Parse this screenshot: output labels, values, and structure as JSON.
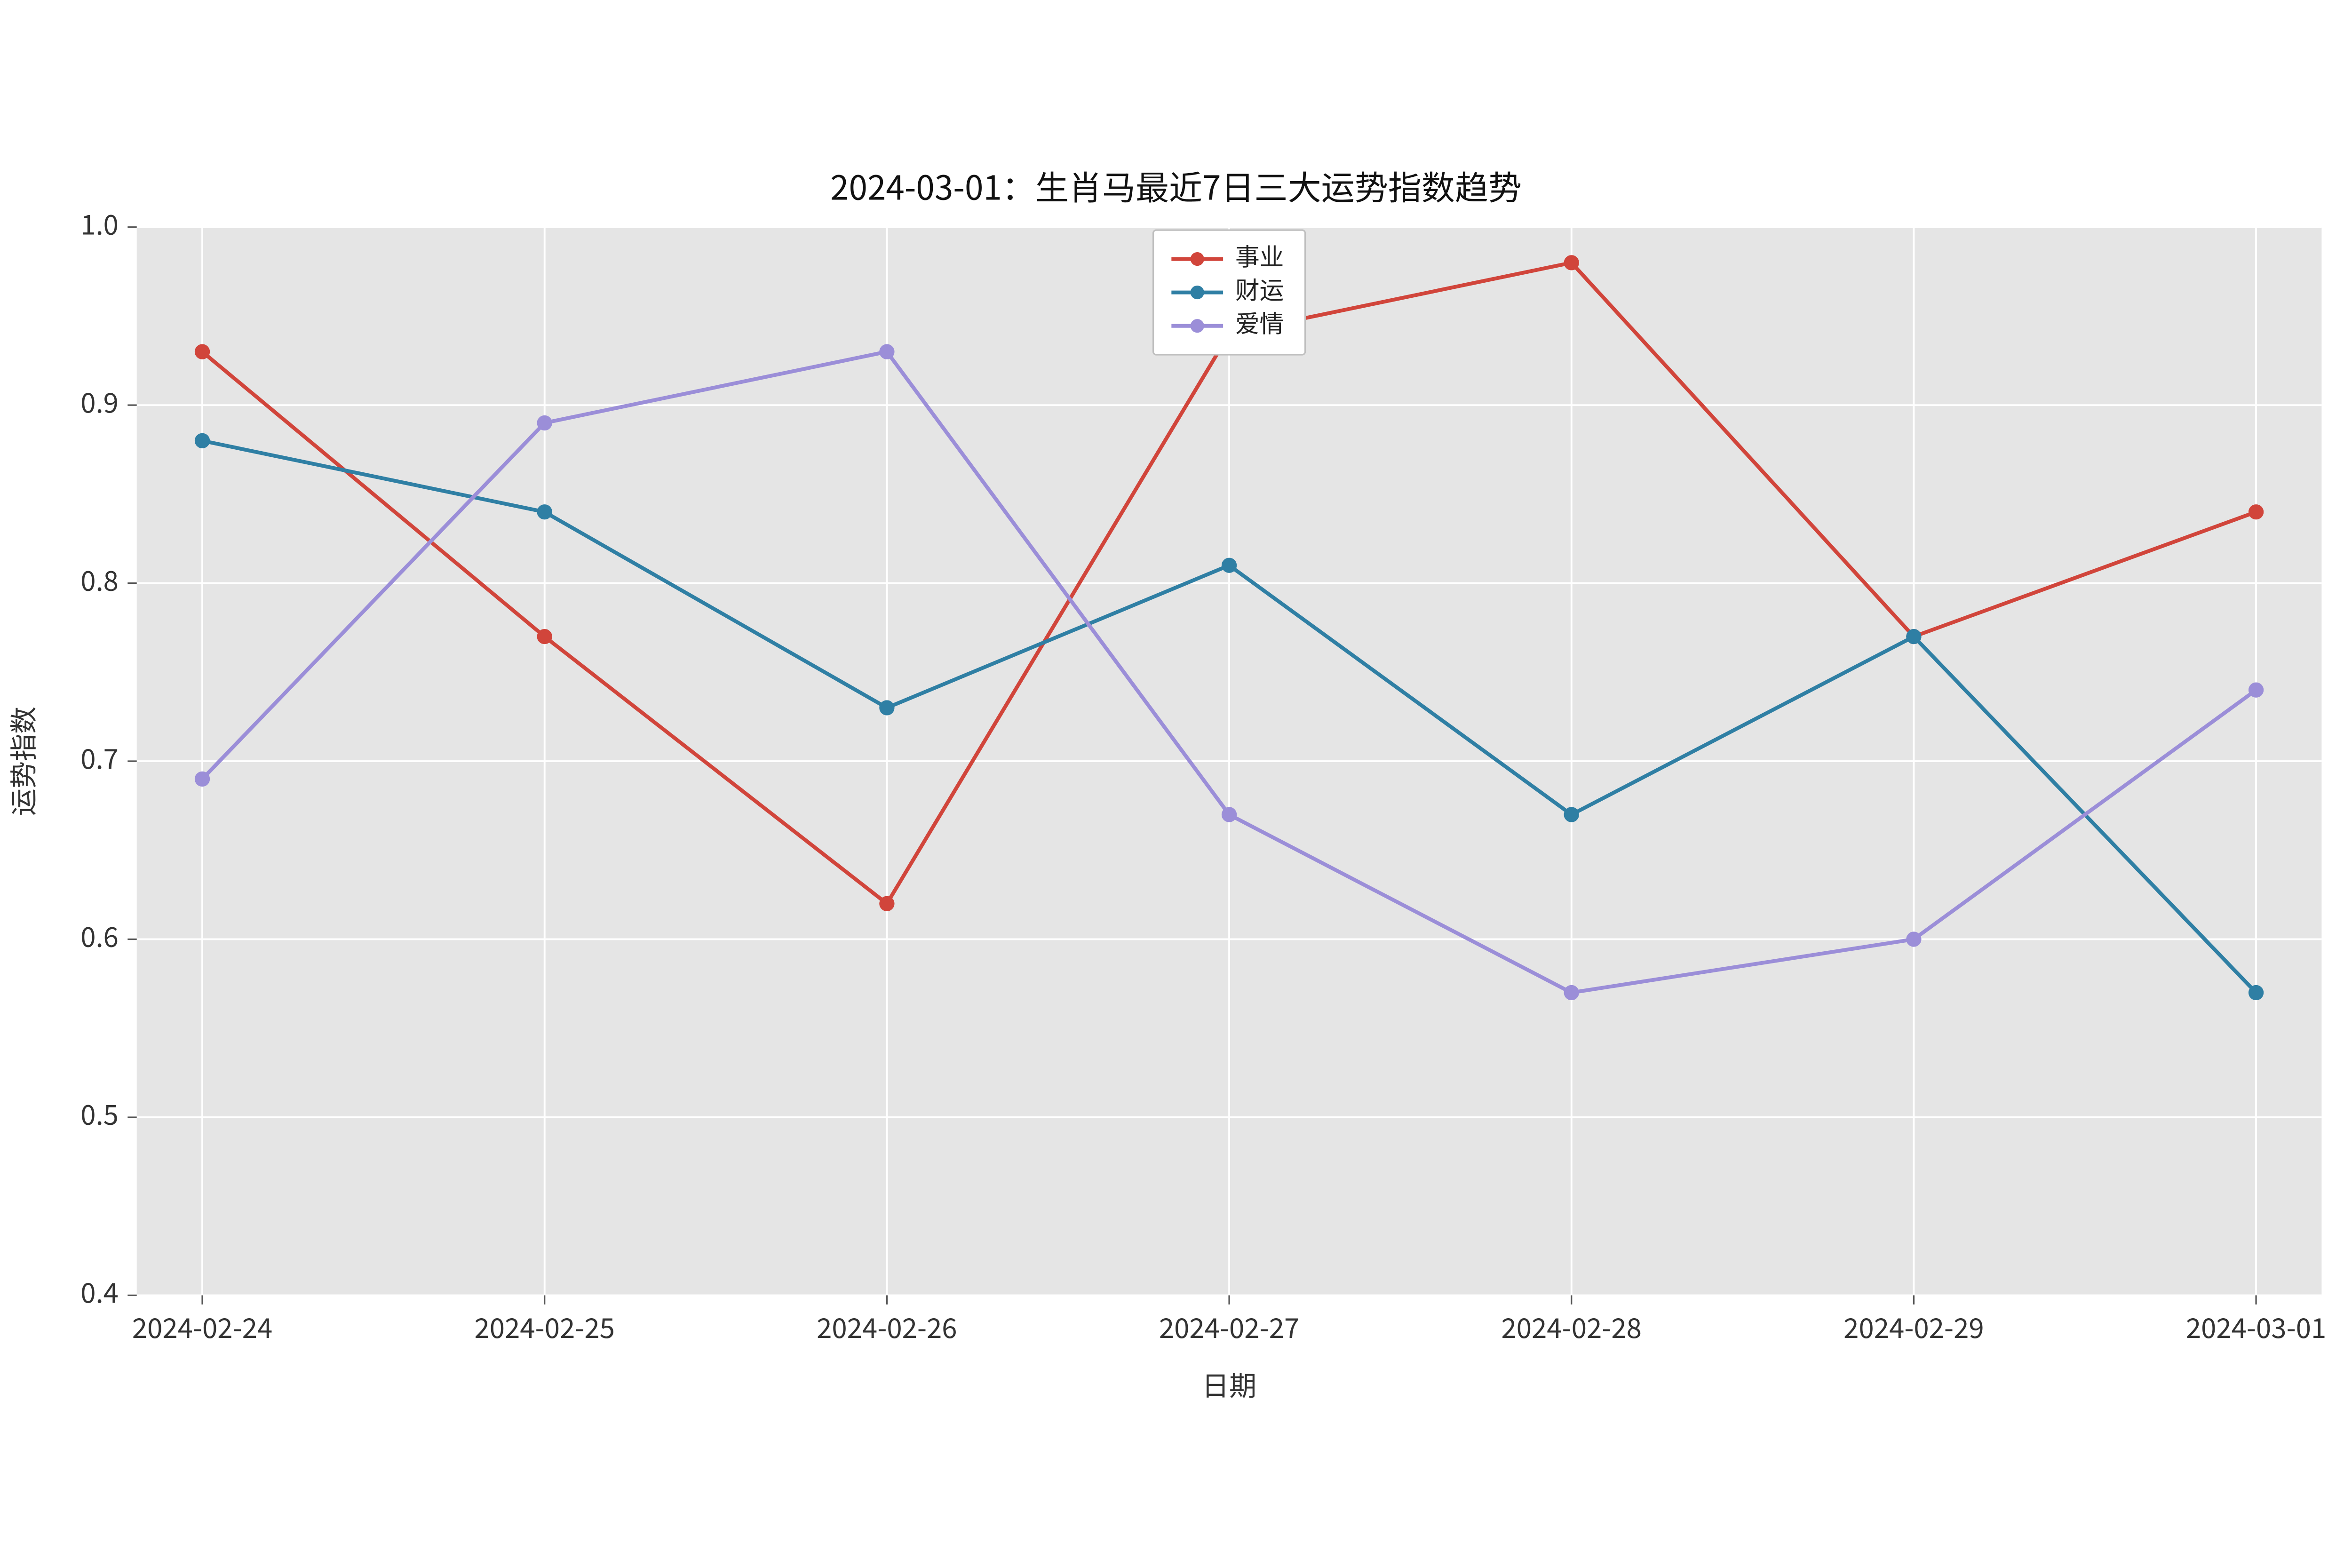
{
  "chart": {
    "type": "line",
    "title": "2024-03-01：生肖马最近7日三大运势指数趋势",
    "title_fontsize": 22,
    "xlabel": "日期",
    "ylabel": "运势指数",
    "label_fontsize": 18,
    "tick_fontsize": 18,
    "background_color": "#ffffff",
    "plot_bgcolor": "#e5e5e5",
    "grid_color": "#ffffff",
    "grid_width": 1.2,
    "aspect_w": 1548,
    "aspect_h": 833,
    "margins": {
      "l": 90,
      "r": 20,
      "t": 50,
      "b": 80
    },
    "x": {
      "categories": [
        "2024-02-24",
        "2024-02-25",
        "2024-02-26",
        "2024-02-27",
        "2024-02-28",
        "2024-02-29",
        "2024-03-01"
      ]
    },
    "y": {
      "ylim": [
        0.4,
        1.0
      ],
      "ticks": [
        0.4,
        0.5,
        0.6,
        0.7,
        0.8,
        0.9,
        1.0
      ],
      "tick_labels": [
        "0.4",
        "0.5",
        "0.6",
        "0.7",
        "0.8",
        "0.9",
        "1.0"
      ]
    },
    "series": [
      {
        "name": "事业",
        "color": "#d1453b",
        "values": [
          0.93,
          0.77,
          0.62,
          0.94,
          0.98,
          0.77,
          0.84
        ],
        "marker": "circle",
        "marker_size": 9,
        "line_width": 2.5
      },
      {
        "name": "财运",
        "color": "#2f7fa4",
        "values": [
          0.88,
          0.84,
          0.73,
          0.81,
          0.67,
          0.77,
          0.57
        ],
        "marker": "circle",
        "marker_size": 9,
        "line_width": 2.5
      },
      {
        "name": "爱情",
        "color": "#9b8ed8",
        "values": [
          0.69,
          0.89,
          0.93,
          0.67,
          0.57,
          0.6,
          0.74
        ],
        "marker": "circle",
        "marker_size": 9,
        "line_width": 2.5
      }
    ],
    "legend": {
      "position": "top-center",
      "frame": true,
      "fontsize": 16
    }
  }
}
